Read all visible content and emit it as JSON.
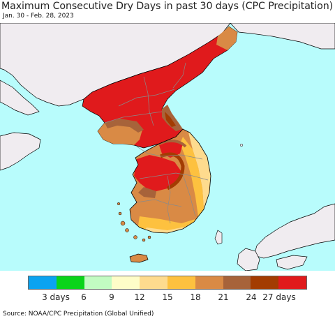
{
  "title": "Maximum Consecutive Dry Days in past 30 days (CPC Precipitation)",
  "subtitle": "Jan. 30 - Feb. 28, 2023",
  "source": "Source: NOAA/CPC Precipitation (Global Unified)",
  "colors": {
    "ocean": "#b8fcfc",
    "land_other": "#f0ecf0",
    "coast": "#000000",
    "border": "#8a8a8a"
  },
  "legend": {
    "colors": [
      "#0ba3f0",
      "#0ad41a",
      "#c2fcc2",
      "#fefdc8",
      "#fedb8e",
      "#fdc13f",
      "#d98a45",
      "#a7633a",
      "#a33c02",
      "#e01a1c"
    ],
    "labels": [
      "3 days",
      "6",
      "9",
      "12",
      "15",
      "18",
      "21",
      "24",
      "27 days"
    ]
  }
}
